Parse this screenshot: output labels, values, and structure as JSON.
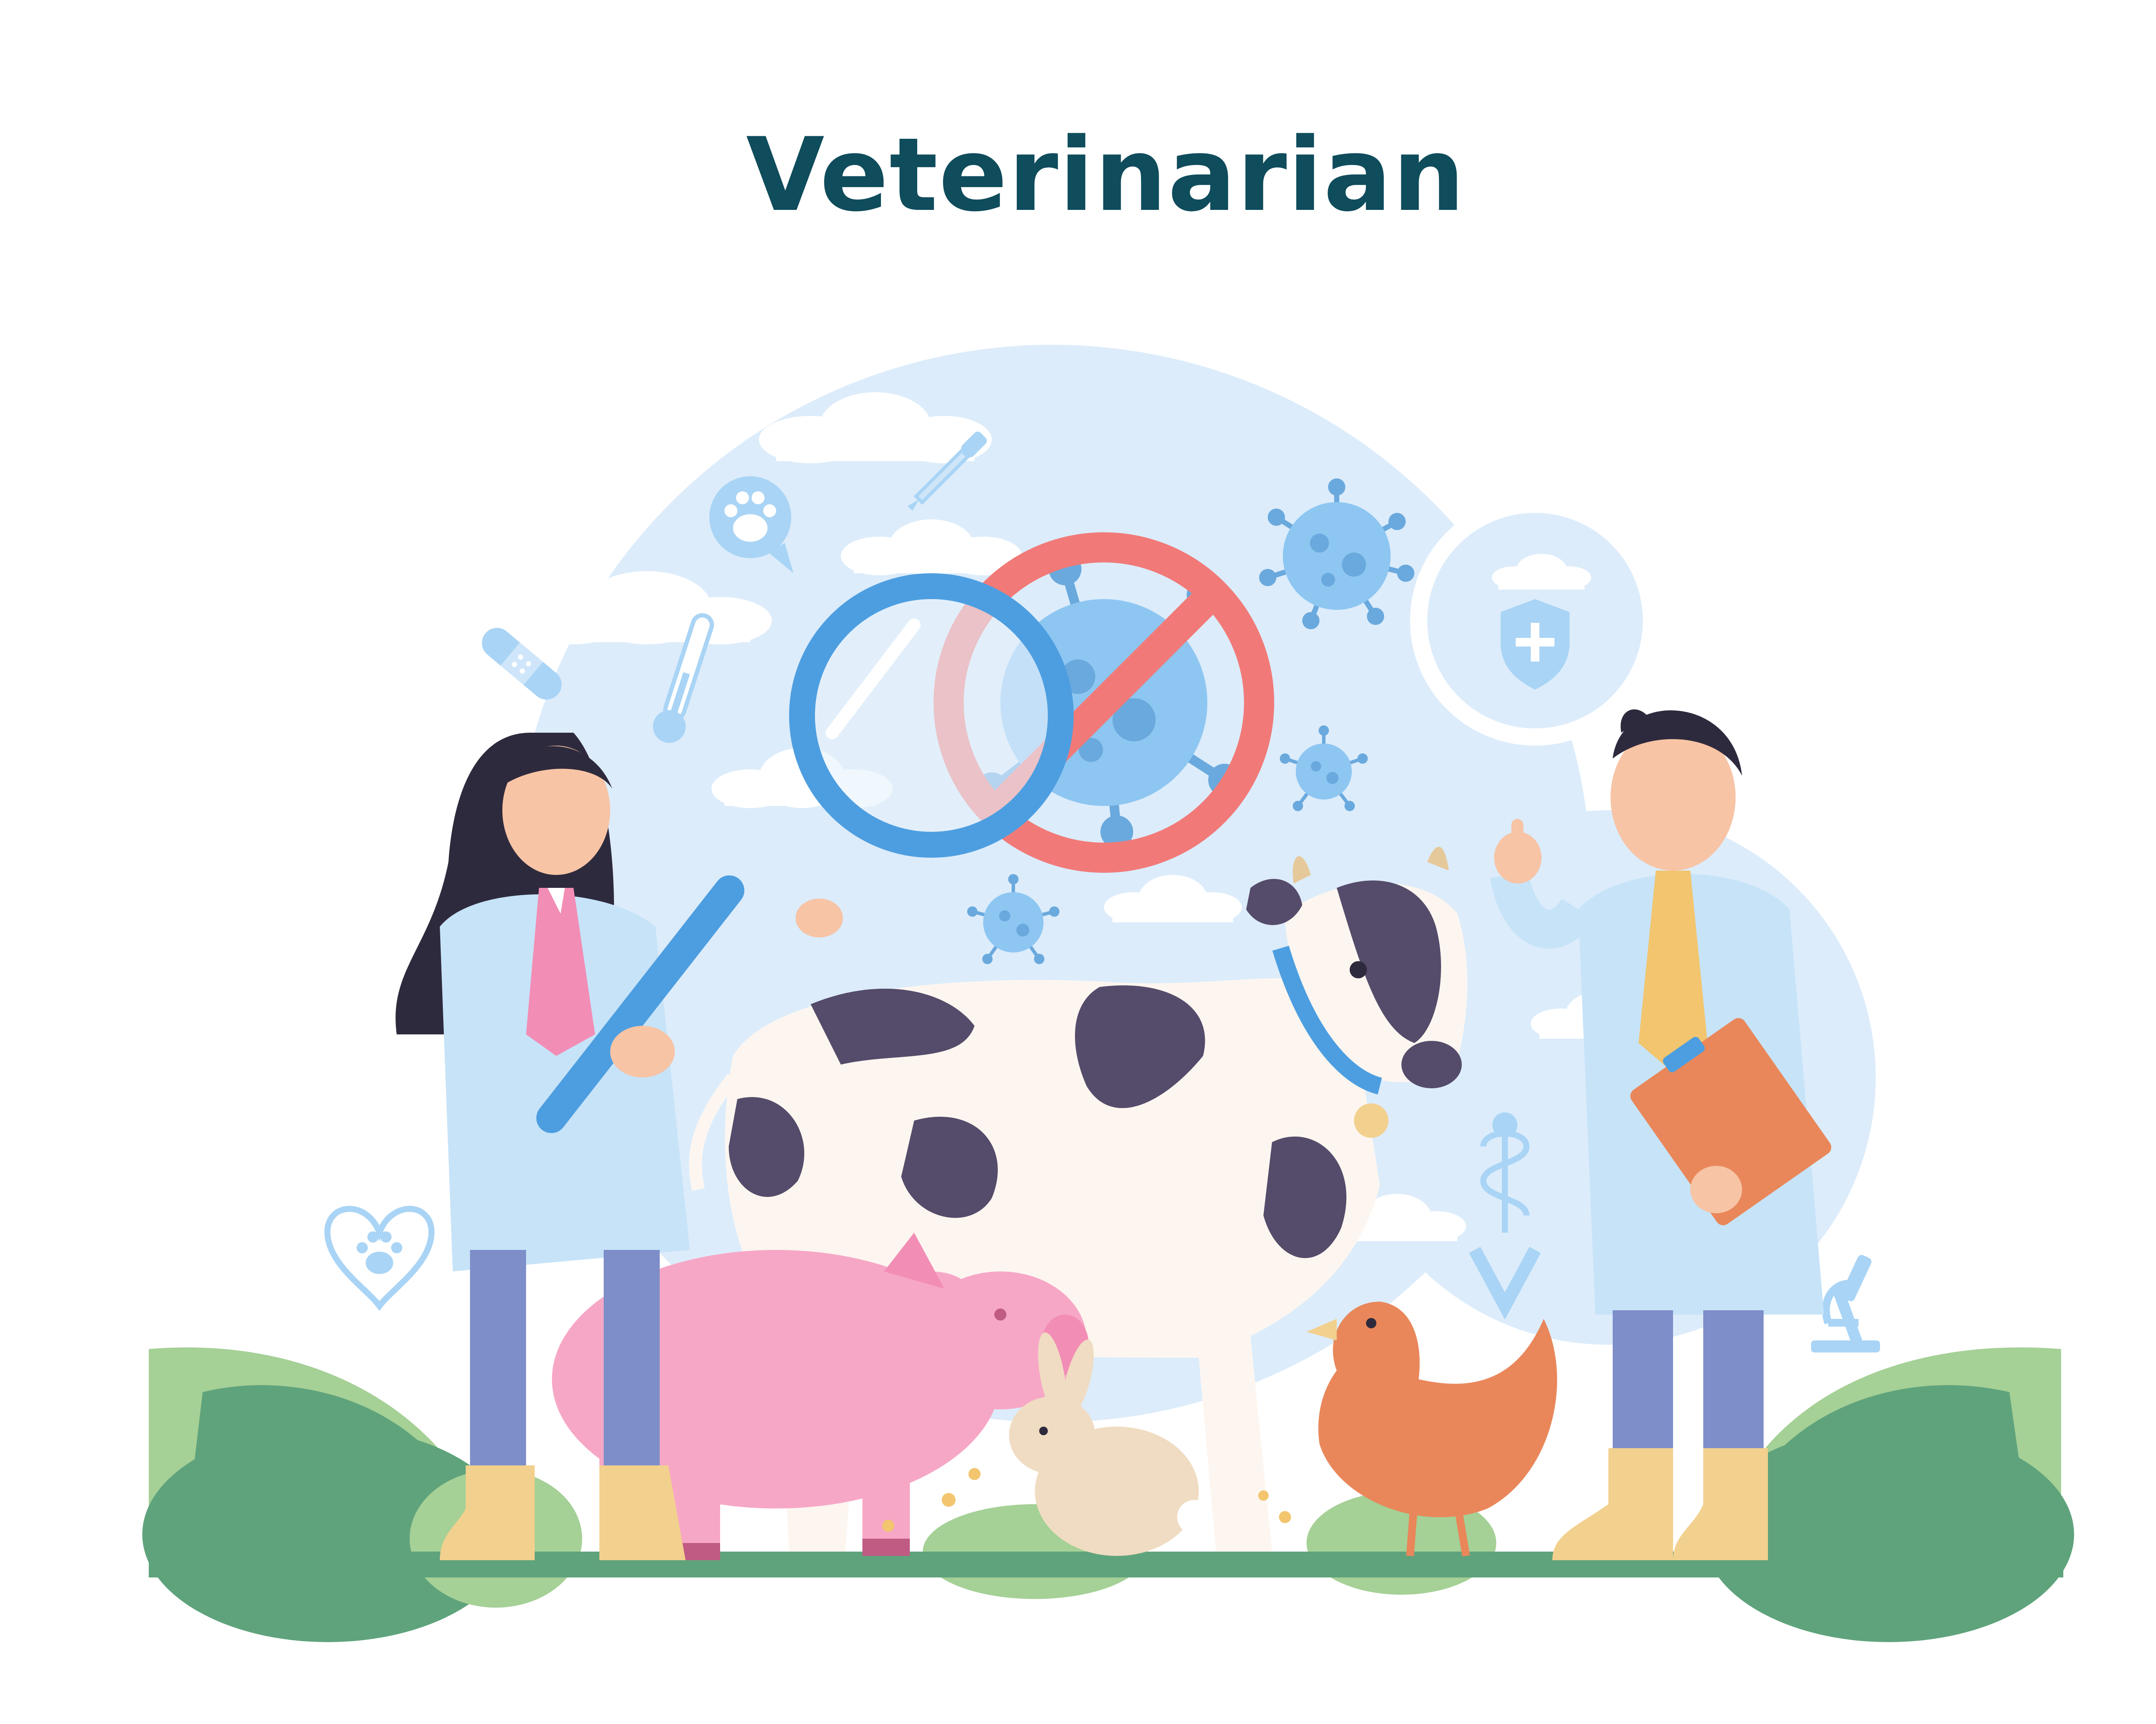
{
  "title": "Veterinarian",
  "colors": {
    "title": "#0f4c5c",
    "backdrop": "#dcecfb",
    "virus": "#8ec6f2",
    "forbidden": "#f17a78",
    "magnifier": "#4d9ee0",
    "coat": "#c7e3f8",
    "trousers": "#7e8ec9",
    "boots": "#f2d08e",
    "pig": "#f7a7c6",
    "cow_spots": "#554b6a",
    "chicken": "#e9875a",
    "rabbit": "#f0dcc2",
    "foliage": "#5fa37c",
    "ground": "#5fa37c"
  },
  "icons": [
    "paw-print-icon",
    "dropper-icon",
    "bandage-icon",
    "thermometer-icon",
    "shield-plus-icon",
    "caduceus-icon",
    "heart-paw-icon",
    "microscope-icon",
    "cloud-icon",
    "magnifying-glass-icon",
    "no-virus-icon",
    "virus-icon"
  ]
}
